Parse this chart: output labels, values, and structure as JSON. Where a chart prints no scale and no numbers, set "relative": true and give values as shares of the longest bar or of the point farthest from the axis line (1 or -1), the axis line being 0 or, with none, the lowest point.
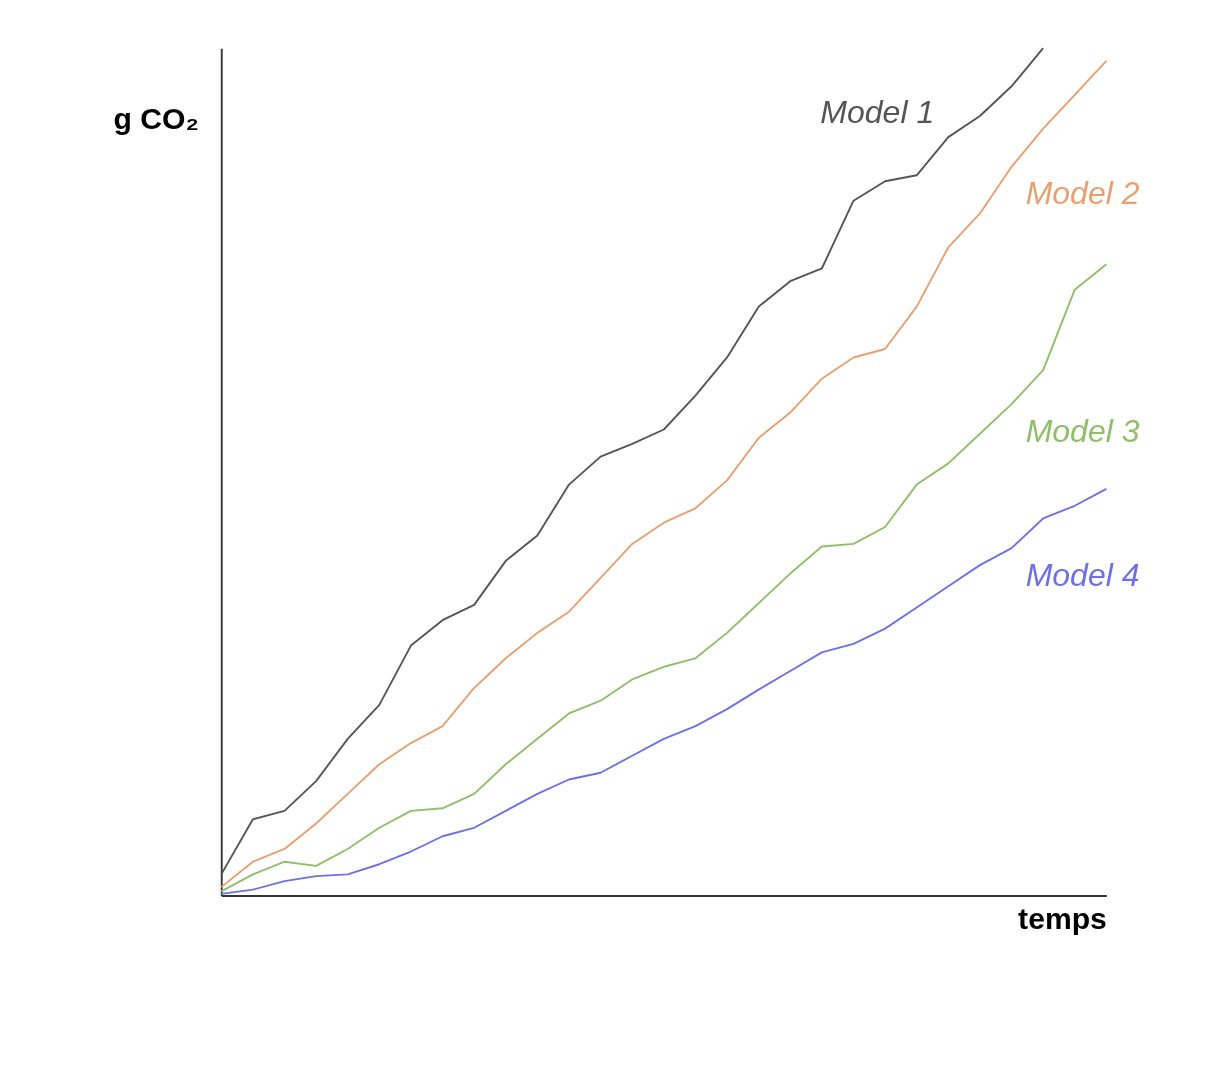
{
  "chart_data": {
    "type": "line",
    "relative": true,
    "xlabel": "temps",
    "ylabel": "g CO₂",
    "legend": false,
    "grid": false,
    "marker": "none",
    "line_style": "solid",
    "categories": [
      null,
      null,
      null,
      null,
      null,
      null,
      null,
      null,
      null,
      null,
      null,
      null,
      null,
      null,
      null,
      null,
      null,
      null,
      null,
      null,
      null,
      null,
      null,
      null,
      null,
      null,
      null,
      null,
      null
    ],
    "series": [
      {
        "name": "Model 1",
        "color": "#555555",
        "values": [
          0.025,
          0.09,
          0.1,
          0.135,
          0.185,
          0.225,
          0.295,
          0.325,
          0.343,
          0.395,
          0.425,
          0.485,
          0.518,
          0.533,
          0.55,
          0.59,
          0.635,
          0.695,
          0.725,
          0.74,
          0.82,
          0.843,
          0.85,
          0.895,
          0.92,
          0.955,
          1.0,
          null,
          null
        ]
      },
      {
        "name": "Model 2",
        "color": "#e8a070",
        "values": [
          0.01,
          0.04,
          0.055,
          0.085,
          0.12,
          0.155,
          0.18,
          0.2,
          0.245,
          0.28,
          0.31,
          0.335,
          0.375,
          0.415,
          0.44,
          0.457,
          0.49,
          0.54,
          0.57,
          0.61,
          0.635,
          0.645,
          0.695,
          0.765,
          0.805,
          0.86,
          0.905,
          0.945,
          0.985
        ]
      },
      {
        "name": "Model 3",
        "color": "#8fbf6a",
        "values": [
          0.005,
          0.025,
          0.04,
          0.035,
          0.055,
          0.08,
          0.1,
          0.103,
          0.12,
          0.155,
          0.185,
          0.215,
          0.23,
          0.255,
          0.27,
          0.28,
          0.31,
          0.345,
          0.38,
          0.412,
          0.415,
          0.435,
          0.485,
          0.51,
          0.545,
          0.58,
          0.62,
          0.715,
          0.745
        ]
      },
      {
        "name": "Model 4",
        "color": "#6f6fe6",
        "values": [
          0.002,
          0.007,
          0.017,
          0.023,
          0.025,
          0.037,
          0.052,
          0.07,
          0.08,
          0.1,
          0.12,
          0.137,
          0.145,
          0.165,
          0.185,
          0.2,
          0.22,
          0.243,
          0.265,
          0.287,
          0.297,
          0.315,
          0.34,
          0.365,
          0.39,
          0.41,
          0.445,
          0.46,
          0.48
        ]
      }
    ]
  }
}
